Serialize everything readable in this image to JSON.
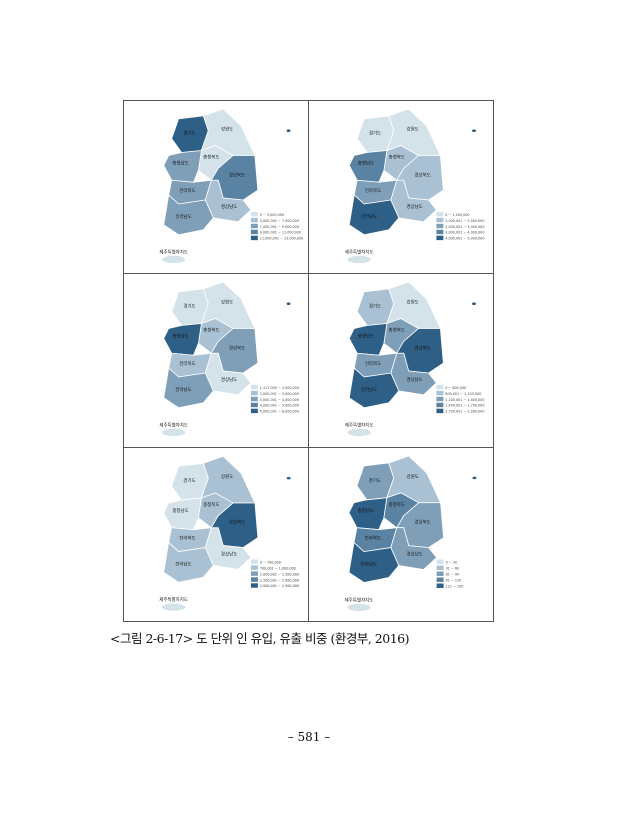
{
  "colors": [
    "#d4e3ea",
    "#a9c1d2",
    "#7f9fb9",
    "#5a82a3",
    "#2e5f87"
  ],
  "regions": [
    "경기도",
    "강원도",
    "충청북도",
    "충청남도",
    "경상북도",
    "전라북도",
    "경상남도",
    "전라남도",
    "제주특별자치도"
  ],
  "panels": [
    {
      "classes": {
        "경기도": 4,
        "강원도": 0,
        "충청북도": 0,
        "충청남도": 2,
        "경상북도": 3,
        "전라북도": 2,
        "경상남도": 1,
        "전라남도": 2,
        "제주특별자치도": 0
      },
      "legend": [
        "0 ~ 3,000,000",
        "3,000,001 ~ 7,000,000",
        "7,000,001 ~ 9,000,000",
        "9,000,001 ~ 11,000,000",
        "11,000,001 ~ 13,000,000"
      ]
    },
    {
      "classes": {
        "경기도": 0,
        "강원도": 0,
        "충청북도": 1,
        "충청남도": 3,
        "경상북도": 1,
        "전라북도": 2,
        "경상남도": 1,
        "전라남도": 4,
        "제주특별자치도": 0
      },
      "legend": [
        "0 ~ 1,000,000",
        "1,000,001 ~ 2,000,000",
        "2,000,001 ~ 3,000,000",
        "3,000,001 ~ 4,000,000",
        "4,000,001 ~ 5,000,000"
      ]
    },
    {
      "classes": {
        "경기도": 0,
        "강원도": 0,
        "충청북도": 1,
        "충청남도": 4,
        "경상북도": 2,
        "전라북도": 1,
        "경상남도": 0,
        "전라남도": 2,
        "제주특별자치도": 0
      },
      "legend": [
        "1,117,000 ~ 2,000,000",
        "2,000,001 ~ 3,000,000",
        "3,000,001 ~ 4,000,000",
        "4,000,001 ~ 5,000,000",
        "5,000,001 ~ 6,000,000"
      ]
    },
    {
      "classes": {
        "경기도": 1,
        "강원도": 0,
        "충청북도": 2,
        "충청남도": 4,
        "경상북도": 4,
        "전라북도": 2,
        "경상남도": 2,
        "전라남도": 4,
        "제주특별자치도": 0
      },
      "legend": [
        "0 ~ 800,000",
        "800,001 ~ 1,100,000",
        "1,100,001 ~ 1,400,000",
        "1,400,001 ~ 1,700,000",
        "1,700,001 ~ 2,000,000"
      ]
    },
    {
      "classes": {
        "경기도": 0,
        "강원도": 1,
        "충청북도": 1,
        "충청남도": 0,
        "경상북도": 4,
        "전라북도": 1,
        "경상남도": 0,
        "전라남도": 1,
        "제주특별자치도": 0
      },
      "legend": [
        "0 ~ 700,000",
        "700,001 ~ 1,000,000",
        "1,000,001 ~ 1,500,000",
        "1,500,001 ~ 2,000,000",
        "2,000,001 ~ 2,500,000"
      ]
    },
    {
      "classes": {
        "경기도": 2,
        "강원도": 1,
        "충청북도": 3,
        "충청남도": 4,
        "경상북도": 2,
        "전라북도": 3,
        "경상남도": 2,
        "전라남도": 4,
        "제주특별자치도": 0
      },
      "legend": [
        "0 ~ 30",
        "31 ~ 60",
        "61 ~ 90",
        "91 ~ 120",
        "121 ~ 150"
      ]
    }
  ],
  "caption": "<그림 2-6-17> 도 단위 인 유입, 유출 비중 (환경부, 2016)",
  "page_number": "– 581 –"
}
